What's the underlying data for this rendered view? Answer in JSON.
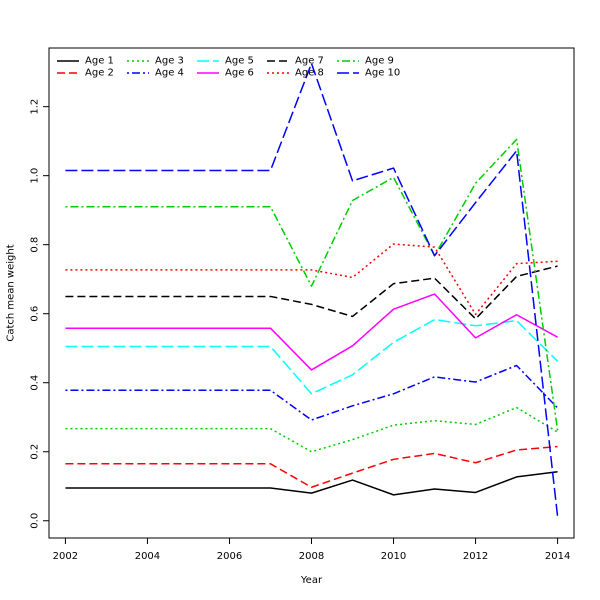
{
  "chart_data": {
    "type": "line",
    "title": "",
    "xlabel": "Year",
    "ylabel": "Catch mean weight",
    "xlim": [
      2001.6,
      2014.4
    ],
    "ylim": [
      -0.05,
      1.37
    ],
    "xticks": [
      2002,
      2004,
      2006,
      2008,
      2010,
      2012,
      2014
    ],
    "yticks": [
      0.0,
      0.2,
      0.4,
      0.6,
      0.8,
      1.0,
      1.2
    ],
    "ytick_labels": [
      "0.0",
      "0.2",
      "0.4",
      "0.6",
      "0.8",
      "1.0",
      "1.2"
    ],
    "legend_position": "top-left",
    "grid": false,
    "x": [
      2002,
      2003,
      2004,
      2005,
      2006,
      2007,
      2008,
      2009,
      2010,
      2011,
      2012,
      2013,
      2014
    ],
    "series": [
      {
        "name": "Age 1",
        "color": "#000000",
        "dash": "solid",
        "values": [
          0.095,
          0.095,
          0.095,
          0.095,
          0.095,
          0.095,
          0.08,
          0.118,
          0.075,
          0.092,
          0.082,
          0.127,
          0.142
        ]
      },
      {
        "name": "Age 2",
        "color": "#ff0000",
        "dash": "dashed",
        "values": [
          0.165,
          0.165,
          0.165,
          0.165,
          0.165,
          0.165,
          0.097,
          0.138,
          0.178,
          0.195,
          0.168,
          0.205,
          0.215
        ]
      },
      {
        "name": "Age 3",
        "color": "#00cd00",
        "dash": "dotted",
        "values": [
          0.267,
          0.267,
          0.267,
          0.267,
          0.267,
          0.267,
          0.2,
          0.235,
          0.277,
          0.29,
          0.279,
          0.328,
          0.257
        ]
      },
      {
        "name": "Age 4",
        "color": "#0000ff",
        "dash": "dotdash",
        "values": [
          0.378,
          0.378,
          0.378,
          0.378,
          0.378,
          0.378,
          0.292,
          0.333,
          0.368,
          0.417,
          0.402,
          0.45,
          0.327
        ]
      },
      {
        "name": "Age 5",
        "color": "#00ffff",
        "dash": "longdash",
        "values": [
          0.505,
          0.505,
          0.505,
          0.505,
          0.505,
          0.505,
          0.368,
          0.423,
          0.517,
          0.583,
          0.565,
          0.58,
          0.462
        ]
      },
      {
        "name": "Age 6",
        "color": "#ff00ff",
        "dash": "solid",
        "values": [
          0.558,
          0.558,
          0.558,
          0.558,
          0.558,
          0.558,
          0.437,
          0.507,
          0.613,
          0.657,
          0.53,
          0.597,
          0.532
        ]
      },
      {
        "name": "Age 7",
        "color": "#000000",
        "dash": "dashed",
        "values": [
          0.65,
          0.65,
          0.65,
          0.65,
          0.65,
          0.65,
          0.627,
          0.592,
          0.687,
          0.703,
          0.585,
          0.708,
          0.738
        ]
      },
      {
        "name": "Age 8",
        "color": "#ff0000",
        "dash": "dotted",
        "values": [
          0.727,
          0.727,
          0.727,
          0.727,
          0.727,
          0.727,
          0.727,
          0.705,
          0.802,
          0.793,
          0.598,
          0.745,
          0.752
        ]
      },
      {
        "name": "Age 9",
        "color": "#00cd00",
        "dash": "dotdash",
        "values": [
          0.91,
          0.91,
          0.91,
          0.91,
          0.91,
          0.91,
          0.68,
          0.928,
          0.995,
          0.768,
          0.978,
          1.105,
          0.262
        ]
      },
      {
        "name": "Age 10",
        "color": "#0000ff",
        "dash": "longdash",
        "values": [
          1.015,
          1.015,
          1.015,
          1.015,
          1.015,
          1.015,
          1.325,
          0.985,
          1.022,
          0.768,
          0.922,
          1.072,
          0.012
        ]
      }
    ]
  }
}
